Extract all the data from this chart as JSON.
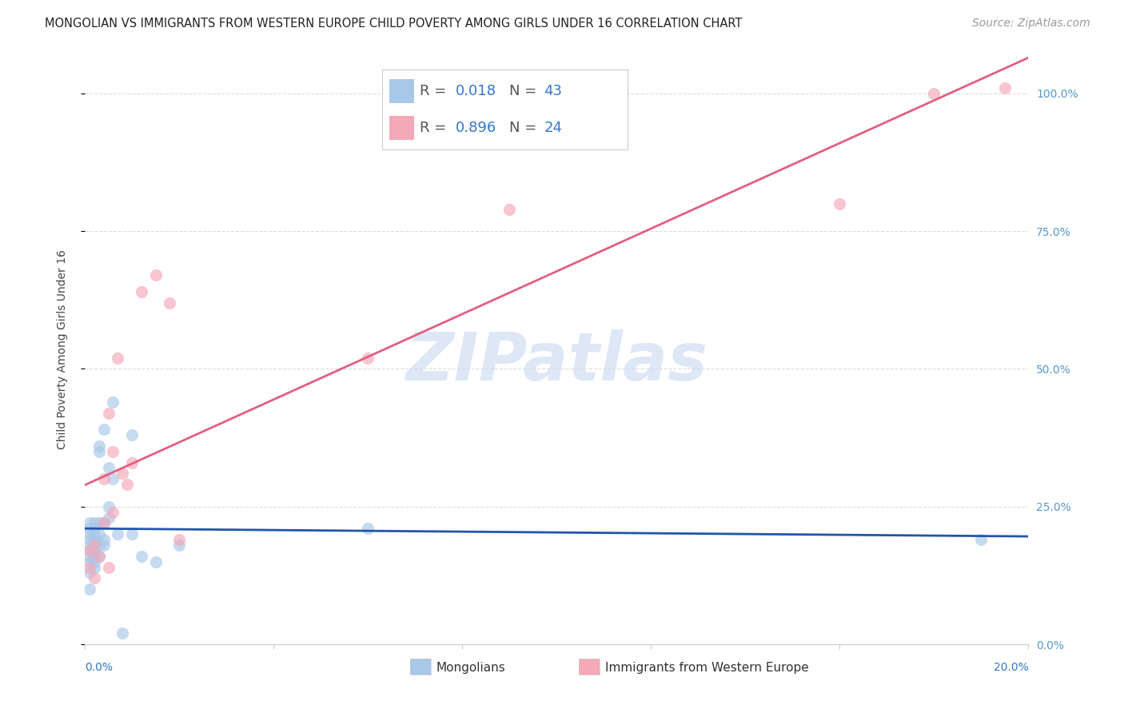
{
  "title": "MONGOLIAN VS IMMIGRANTS FROM WESTERN EUROPE CHILD POVERTY AMONG GIRLS UNDER 16 CORRELATION CHART",
  "source": "Source: ZipAtlas.com",
  "ylabel": "Child Poverty Among Girls Under 16",
  "xlabel_mongolians": "Mongolians",
  "xlabel_immigrants": "Immigrants from Western Europe",
  "xlim": [
    0.0,
    0.2
  ],
  "ylim": [
    0.0,
    1.07
  ],
  "mongolian_R": 0.018,
  "mongolian_N": 43,
  "immigrant_R": 0.896,
  "immigrant_N": 24,
  "mongolian_color": "#a8c8e8",
  "mongolian_trend_color": "#2255aa",
  "immigrant_color": "#f4a8b8",
  "immigrant_trend_color": "#e06080",
  "watermark": "ZIPatlas",
  "mongolian_x": [
    0.001,
    0.001,
    0.001,
    0.001,
    0.001,
    0.001,
    0.001,
    0.001,
    0.001,
    0.001,
    0.002,
    0.002,
    0.002,
    0.002,
    0.002,
    0.002,
    0.002,
    0.002,
    0.002,
    0.003,
    0.003,
    0.003,
    0.003,
    0.003,
    0.003,
    0.004,
    0.004,
    0.004,
    0.004,
    0.005,
    0.005,
    0.005,
    0.006,
    0.006,
    0.007,
    0.008,
    0.01,
    0.01,
    0.012,
    0.015,
    0.02,
    0.06,
    0.19
  ],
  "mongolian_y": [
    0.18,
    0.2,
    0.17,
    0.15,
    0.22,
    0.19,
    0.21,
    0.16,
    0.13,
    0.1,
    0.19,
    0.2,
    0.18,
    0.22,
    0.16,
    0.15,
    0.14,
    0.21,
    0.17,
    0.2,
    0.35,
    0.36,
    0.18,
    0.16,
    0.22,
    0.19,
    0.22,
    0.18,
    0.39,
    0.23,
    0.25,
    0.32,
    0.3,
    0.44,
    0.2,
    0.02,
    0.2,
    0.38,
    0.16,
    0.15,
    0.18,
    0.21,
    0.19
  ],
  "immigrant_x": [
    0.001,
    0.001,
    0.002,
    0.002,
    0.003,
    0.004,
    0.004,
    0.005,
    0.005,
    0.006,
    0.006,
    0.007,
    0.008,
    0.009,
    0.01,
    0.012,
    0.015,
    0.018,
    0.02,
    0.06,
    0.09,
    0.16,
    0.18,
    0.195
  ],
  "immigrant_y": [
    0.14,
    0.17,
    0.12,
    0.18,
    0.16,
    0.22,
    0.3,
    0.14,
    0.42,
    0.24,
    0.35,
    0.52,
    0.31,
    0.29,
    0.33,
    0.64,
    0.67,
    0.62,
    0.19,
    0.52,
    0.79,
    0.8,
    1.0,
    1.01
  ],
  "grid_color": "#dddddd",
  "background_color": "#ffffff",
  "title_fontsize": 10.5,
  "axis_label_fontsize": 10,
  "tick_fontsize": 10,
  "source_fontsize": 10,
  "watermark_fontsize": 60,
  "scatter_size": 120,
  "scatter_alpha": 0.65
}
